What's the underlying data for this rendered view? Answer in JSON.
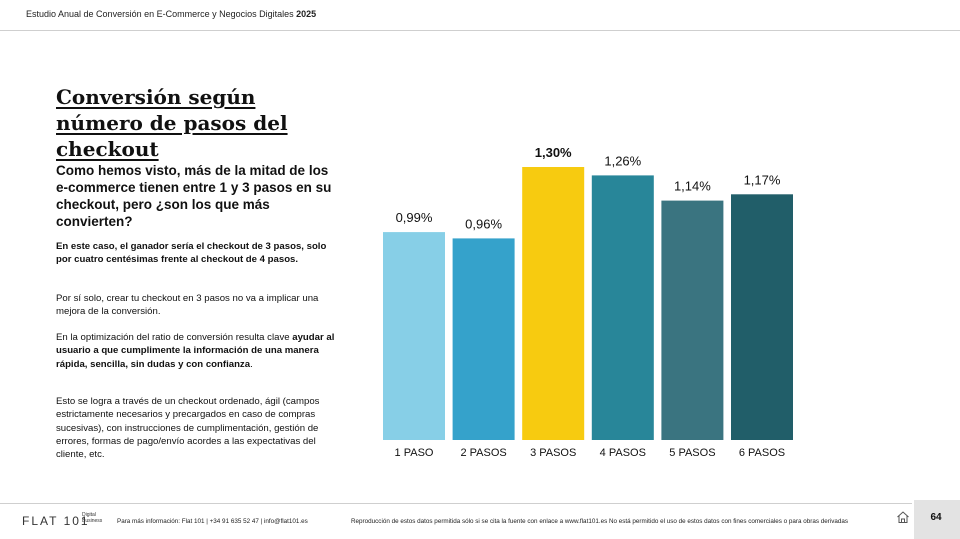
{
  "header": {
    "study_title": "Estudio Anual de Conversión en E-Commerce y Negocios Digitales",
    "year": "2025"
  },
  "content": {
    "title": "Conversión según número de pasos del checkout",
    "lead": "Como hemos visto, más de la mitad de los e-commerce tienen entre 1 y 3 pasos en su checkout, pero ¿son los que más convierten?",
    "p1": "En este caso, el ganador sería el checkout de 3 pasos, solo por cuatro centésimas frente al checkout de 4 pasos.",
    "p2": "Por sí solo, crear tu checkout en 3 pasos no va a implicar una mejora de la conversión.",
    "p3_normal": "En la optimización del ratio de conversión resulta clave ",
    "p3_bold": "ayudar al usuario a que cumplimente la información de una manera rápida, sencilla, sin dudas y con confianza",
    "p3_end": ".",
    "p4": "Esto se logra a través de un checkout ordenado, ágil (campos estrictamente necesarios y precargados en caso de compras sucesivas), con instrucciones de cumplimentación, gestión de errores, formas de pago/envío acordes a las expectativas del cliente, etc."
  },
  "chart_data": {
    "type": "bar",
    "categories": [
      "1 PASO",
      "2 PASOS",
      "3 PASOS",
      "4 PASOS",
      "5 PASOS",
      "6 PASOS"
    ],
    "values": [
      0.99,
      0.96,
      1.3,
      1.26,
      1.14,
      1.17
    ],
    "value_labels": [
      "0,99%",
      "0,96%",
      "1,30%",
      "1,26%",
      "1,14%",
      "1,17%"
    ],
    "bar_colors": [
      "#87CFE7",
      "#35A2CB",
      "#F7CB10",
      "#288699",
      "#3A7480",
      "#215E69"
    ],
    "highlight_index": 2,
    "ylim": [
      0,
      1.3
    ],
    "title": "",
    "xlabel": "",
    "ylabel": "",
    "grid": false
  },
  "footer": {
    "brand": "FLAT 101",
    "brand_sub_1": "Digital",
    "brand_sub_2": "Business",
    "info": "Para más información: Flat 101  |  +34 91 635 52 47  |  info@flat101.es",
    "legal": "Reproducción de estos datos permitida sólo si se cita la fuente con enlace a www.flat101.es No está permitido el uso de estos datos con fines comerciales o para obras derivadas",
    "page_number": "64",
    "home_icon": "home-icon"
  }
}
